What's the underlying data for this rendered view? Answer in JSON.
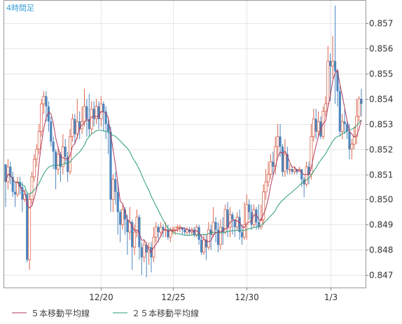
{
  "chart_data": {
    "type": "line",
    "period_label": "4時間足",
    "ylim": [
      0.8465,
      0.8579
    ],
    "y_ticks": [
      "0.857",
      "0.856",
      "0.855",
      "0.854",
      "0.853",
      "0.852",
      "0.851",
      "0.850",
      "0.849",
      "0.848",
      "0.847"
    ],
    "y_tick_values": [
      0.857,
      0.856,
      0.855,
      0.854,
      0.853,
      0.852,
      0.851,
      0.85,
      0.849,
      0.848,
      0.847
    ],
    "x_ticks": [
      {
        "label": "12/20",
        "index": 40
      },
      {
        "label": "12/25",
        "index": 70
      },
      {
        "label": "12/30",
        "index": 101
      },
      {
        "label": "1/3",
        "index": 136
      }
    ],
    "grid": true,
    "legend_position": "bottom",
    "colors": {
      "up": "#d9664f",
      "down": "#4d86bd",
      "ma5": "#b03a5c",
      "ma25": "#2a9d74",
      "grid": "#e6e6e6",
      "axis": "#888888"
    },
    "candles": [
      [
        0.8514,
        0.8507,
        0.8497,
        0.8514
      ],
      [
        0.8507,
        0.8513,
        0.8504,
        0.8516
      ],
      [
        0.8513,
        0.8509,
        0.8506,
        0.8515
      ],
      [
        0.8509,
        0.8503,
        0.8501,
        0.8511
      ],
      [
        0.8503,
        0.8502,
        0.8497,
        0.8507
      ],
      [
        0.8502,
        0.8507,
        0.8501,
        0.8509
      ],
      [
        0.8507,
        0.8505,
        0.8502,
        0.8509
      ],
      [
        0.8505,
        0.85,
        0.8495,
        0.8507
      ],
      [
        0.85,
        0.8502,
        0.8499,
        0.8504
      ],
      [
        0.8502,
        0.8476,
        0.8475,
        0.8503
      ],
      [
        0.8476,
        0.85,
        0.8472,
        0.8502
      ],
      [
        0.85,
        0.8509,
        0.8498,
        0.8511
      ],
      [
        0.8509,
        0.8516,
        0.8507,
        0.8518
      ],
      [
        0.8516,
        0.852,
        0.8513,
        0.8522
      ],
      [
        0.852,
        0.8527,
        0.8518,
        0.853
      ],
      [
        0.8527,
        0.8538,
        0.8525,
        0.854
      ],
      [
        0.8538,
        0.8541,
        0.8534,
        0.8543
      ],
      [
        0.8541,
        0.8537,
        0.8531,
        0.8543
      ],
      [
        0.8537,
        0.8531,
        0.8527,
        0.8539
      ],
      [
        0.8531,
        0.8523,
        0.8521,
        0.8533
      ],
      [
        0.8523,
        0.8519,
        0.8512,
        0.8525
      ],
      [
        0.8519,
        0.8512,
        0.8504,
        0.852
      ],
      [
        0.8512,
        0.8518,
        0.851,
        0.8521
      ],
      [
        0.8518,
        0.8513,
        0.8507,
        0.8519
      ],
      [
        0.8513,
        0.8521,
        0.851,
        0.8526
      ],
      [
        0.8521,
        0.8517,
        0.8514,
        0.8524
      ],
      [
        0.8517,
        0.8511,
        0.8507,
        0.8519
      ],
      [
        0.8511,
        0.8525,
        0.851,
        0.8528
      ],
      [
        0.8525,
        0.8532,
        0.8523,
        0.8534
      ],
      [
        0.8532,
        0.8526,
        0.8522,
        0.8534
      ],
      [
        0.8526,
        0.8531,
        0.8524,
        0.854
      ],
      [
        0.8531,
        0.8528,
        0.8524,
        0.8535
      ],
      [
        0.8528,
        0.8531,
        0.8526,
        0.8537
      ],
      [
        0.8531,
        0.8537,
        0.8529,
        0.8544
      ],
      [
        0.8537,
        0.8532,
        0.8525,
        0.854
      ],
      [
        0.8532,
        0.8528,
        0.8525,
        0.8542
      ],
      [
        0.8528,
        0.8536,
        0.8526,
        0.8539
      ],
      [
        0.8536,
        0.8532,
        0.8529,
        0.8539
      ],
      [
        0.8532,
        0.8537,
        0.853,
        0.854
      ],
      [
        0.8537,
        0.8532,
        0.8528,
        0.8539
      ],
      [
        0.8532,
        0.8538,
        0.8529,
        0.8541
      ],
      [
        0.8538,
        0.8535,
        0.8527,
        0.8539
      ],
      [
        0.8535,
        0.853,
        0.8524,
        0.8537
      ],
      [
        0.853,
        0.8527,
        0.8518,
        0.8532
      ],
      [
        0.8527,
        0.85,
        0.8495,
        0.8529
      ],
      [
        0.85,
        0.8508,
        0.8495,
        0.851
      ],
      [
        0.8508,
        0.8503,
        0.8498,
        0.8511
      ],
      [
        0.8503,
        0.8495,
        0.8486,
        0.8507
      ],
      [
        0.8495,
        0.849,
        0.8483,
        0.8496
      ],
      [
        0.849,
        0.8496,
        0.8488,
        0.8498
      ],
      [
        0.8496,
        0.8492,
        0.8486,
        0.8497
      ],
      [
        0.8492,
        0.8487,
        0.8478,
        0.8494
      ],
      [
        0.8487,
        0.8491,
        0.8484,
        0.8497
      ],
      [
        0.8491,
        0.8481,
        0.8472,
        0.8492
      ],
      [
        0.8481,
        0.8487,
        0.8478,
        0.849
      ],
      [
        0.8487,
        0.8493,
        0.8485,
        0.8496
      ],
      [
        0.8493,
        0.8481,
        0.8476,
        0.8494
      ],
      [
        0.8481,
        0.8477,
        0.847,
        0.8483
      ],
      [
        0.8477,
        0.8482,
        0.8475,
        0.8484
      ],
      [
        0.8482,
        0.8479,
        0.8469,
        0.8483
      ],
      [
        0.8479,
        0.8481,
        0.8474,
        0.8483
      ],
      [
        0.8481,
        0.8477,
        0.8471,
        0.8483
      ],
      [
        0.8477,
        0.8485,
        0.8475,
        0.8489
      ],
      [
        0.8485,
        0.8489,
        0.8483,
        0.8491
      ],
      [
        0.8489,
        0.8487,
        0.8483,
        0.849
      ],
      [
        0.8487,
        0.8489,
        0.8485,
        0.8491
      ],
      [
        0.8489,
        0.8488,
        0.8485,
        0.849
      ],
      [
        0.8488,
        0.8488,
        0.8485,
        0.8491
      ],
      [
        0.8488,
        0.8485,
        0.8484,
        0.849
      ],
      [
        0.8485,
        0.8488,
        0.8483,
        0.8489
      ],
      [
        0.8488,
        0.8488,
        0.8486,
        0.8489
      ],
      [
        0.8488,
        0.8489,
        0.8486,
        0.8489
      ],
      [
        0.8489,
        0.8489,
        0.8487,
        0.849
      ],
      [
        0.8489,
        0.8489,
        0.8487,
        0.849
      ],
      [
        0.8489,
        0.8488,
        0.8486,
        0.8489
      ],
      [
        0.8488,
        0.8487,
        0.8486,
        0.8489
      ],
      [
        0.8487,
        0.8488,
        0.8486,
        0.8489
      ],
      [
        0.8488,
        0.8487,
        0.8486,
        0.8489
      ],
      [
        0.8487,
        0.8488,
        0.8486,
        0.8489
      ],
      [
        0.8488,
        0.8486,
        0.8485,
        0.8489
      ],
      [
        0.8486,
        0.8489,
        0.8485,
        0.849
      ],
      [
        0.8489,
        0.8484,
        0.8482,
        0.849
      ],
      [
        0.8484,
        0.8479,
        0.8478,
        0.8486
      ],
      [
        0.8479,
        0.8484,
        0.8478,
        0.8486
      ],
      [
        0.8484,
        0.8481,
        0.8476,
        0.8486
      ],
      [
        0.8481,
        0.8488,
        0.848,
        0.8491
      ],
      [
        0.8488,
        0.8486,
        0.848,
        0.849
      ],
      [
        0.8486,
        0.8491,
        0.8485,
        0.8497
      ],
      [
        0.8491,
        0.8488,
        0.8483,
        0.8493
      ],
      [
        0.8488,
        0.8482,
        0.8479,
        0.8491
      ],
      [
        0.8482,
        0.8489,
        0.848,
        0.8492
      ],
      [
        0.8489,
        0.8487,
        0.8482,
        0.8493
      ],
      [
        0.8487,
        0.8496,
        0.8486,
        0.8498
      ],
      [
        0.8496,
        0.8489,
        0.8485,
        0.8499
      ],
      [
        0.8489,
        0.8494,
        0.8485,
        0.8497
      ],
      [
        0.8494,
        0.8492,
        0.8486,
        0.8495
      ],
      [
        0.8492,
        0.8489,
        0.8485,
        0.8492
      ],
      [
        0.8489,
        0.8493,
        0.8488,
        0.8495
      ],
      [
        0.8493,
        0.8487,
        0.8484,
        0.8496
      ],
      [
        0.8487,
        0.8485,
        0.8482,
        0.849
      ],
      [
        0.8485,
        0.849,
        0.8484,
        0.8499
      ],
      [
        0.849,
        0.8498,
        0.8484,
        0.8502
      ],
      [
        0.8498,
        0.8495,
        0.8492,
        0.85
      ],
      [
        0.8495,
        0.849,
        0.8488,
        0.8498
      ],
      [
        0.849,
        0.8496,
        0.8489,
        0.8498
      ],
      [
        0.8496,
        0.8491,
        0.8488,
        0.8497
      ],
      [
        0.8491,
        0.8489,
        0.8488,
        0.8498
      ],
      [
        0.8489,
        0.8492,
        0.8488,
        0.8498
      ],
      [
        0.8492,
        0.8503,
        0.849,
        0.8506
      ],
      [
        0.8503,
        0.8507,
        0.85,
        0.8512
      ],
      [
        0.8507,
        0.851,
        0.8505,
        0.8515
      ],
      [
        0.851,
        0.8515,
        0.8508,
        0.8518
      ],
      [
        0.8515,
        0.8513,
        0.8509,
        0.8519
      ],
      [
        0.8513,
        0.8521,
        0.851,
        0.8525
      ],
      [
        0.8521,
        0.8525,
        0.8517,
        0.853
      ],
      [
        0.8525,
        0.8521,
        0.8517,
        0.853
      ],
      [
        0.8521,
        0.8511,
        0.8509,
        0.8522
      ],
      [
        0.8511,
        0.8518,
        0.8509,
        0.8524
      ],
      [
        0.8518,
        0.8512,
        0.851,
        0.8521
      ],
      [
        0.8512,
        0.8512,
        0.851,
        0.8514
      ],
      [
        0.8512,
        0.8511,
        0.851,
        0.8513
      ],
      [
        0.8511,
        0.8512,
        0.851,
        0.8513
      ],
      [
        0.8512,
        0.8511,
        0.851,
        0.8512
      ],
      [
        0.8511,
        0.8512,
        0.8511,
        0.8513
      ],
      [
        0.8512,
        0.8508,
        0.8505,
        0.8512
      ],
      [
        0.8508,
        0.8506,
        0.8501,
        0.8509
      ],
      [
        0.8506,
        0.8513,
        0.8505,
        0.8515
      ],
      [
        0.8513,
        0.851,
        0.8506,
        0.8515
      ],
      [
        0.851,
        0.8525,
        0.8508,
        0.853
      ],
      [
        0.8525,
        0.8532,
        0.8523,
        0.8536
      ],
      [
        0.8532,
        0.8527,
        0.8524,
        0.8536
      ],
      [
        0.8527,
        0.8531,
        0.8525,
        0.8535
      ],
      [
        0.8531,
        0.8525,
        0.8524,
        0.8533
      ],
      [
        0.8525,
        0.8535,
        0.8524,
        0.8537
      ],
      [
        0.8535,
        0.8538,
        0.8533,
        0.8541
      ],
      [
        0.8538,
        0.8555,
        0.8538,
        0.8561
      ],
      [
        0.8555,
        0.8553,
        0.8539,
        0.8558
      ],
      [
        0.8553,
        0.8555,
        0.8548,
        0.8565
      ],
      [
        0.8555,
        0.8551,
        0.8538,
        0.8577
      ],
      [
        0.8551,
        0.8543,
        0.8537,
        0.8552
      ],
      [
        0.8543,
        0.8527,
        0.8525,
        0.8545
      ],
      [
        0.8527,
        0.8531,
        0.8524,
        0.8534
      ],
      [
        0.8531,
        0.853,
        0.8526,
        0.8536
      ],
      [
        0.853,
        0.8527,
        0.8524,
        0.8531
      ],
      [
        0.8527,
        0.852,
        0.8516,
        0.853
      ],
      [
        0.852,
        0.8522,
        0.8516,
        0.8524
      ],
      [
        0.8522,
        0.8525,
        0.852,
        0.8529
      ],
      [
        0.8525,
        0.8533,
        0.8522,
        0.854
      ],
      [
        0.8533,
        0.854,
        0.8531,
        0.8541
      ],
      [
        0.854,
        0.8538,
        0.8533,
        0.8544
      ]
    ]
  },
  "legend": {
    "ma5": "５本移動平均線",
    "ma25": "２５本移動平均線"
  }
}
